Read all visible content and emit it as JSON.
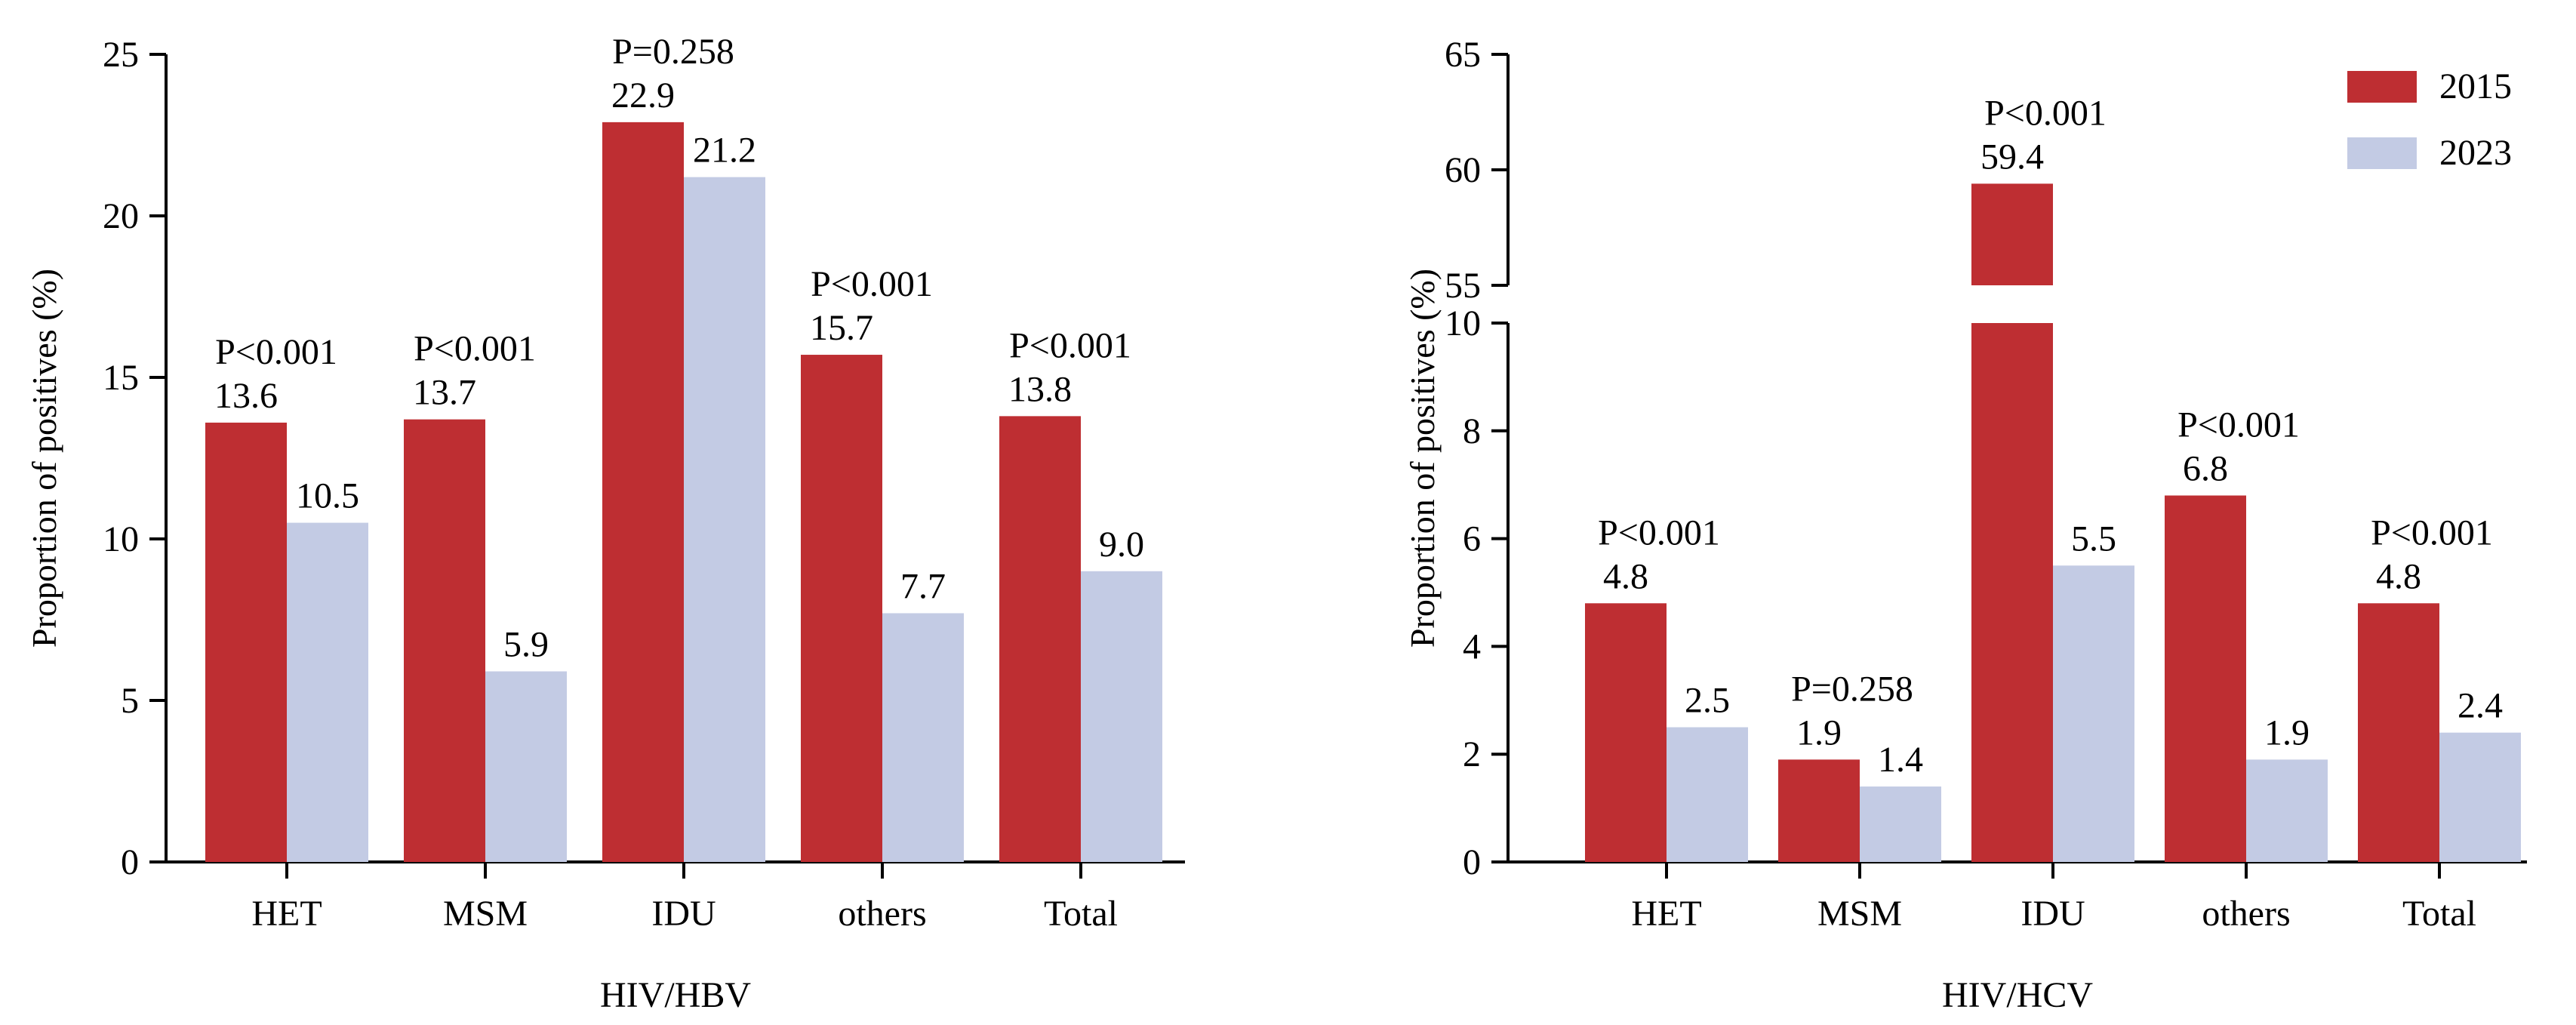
{
  "chart_data": [
    {
      "type": "bar",
      "title": "",
      "xlabel": "HIV/HBV",
      "ylabel": "Proportion of positives  (%)",
      "ylim": [
        0,
        25
      ],
      "yticks": [
        0,
        5,
        10,
        15,
        20,
        25
      ],
      "categories": [
        "HET",
        "MSM",
        "IDU",
        "others",
        "Total"
      ],
      "series": [
        {
          "name": "2015",
          "color": "#be2e32",
          "values": [
            13.6,
            13.7,
            22.9,
            15.7,
            13.8
          ],
          "labels": [
            "13.6",
            "13.7",
            "22.9",
            "15.7",
            "13.8"
          ]
        },
        {
          "name": "2023",
          "color": "#c3cbe4",
          "values": [
            10.5,
            5.9,
            21.2,
            7.7,
            9.0
          ],
          "labels": [
            "10.5",
            "5.9",
            "21.2",
            "7.7",
            "9.0"
          ]
        }
      ],
      "p_values": [
        "P<0.001",
        "P<0.001",
        "P=0.258",
        "P<0.001",
        "P<0.001"
      ]
    },
    {
      "type": "bar",
      "title": "",
      "xlabel": "HIV/HCV",
      "ylabel": "Proportion of positives  (%)",
      "ylim": [
        0,
        65
      ],
      "axis_break": {
        "lower": [
          0,
          10
        ],
        "upper": [
          55,
          65
        ]
      },
      "yticks_lower": [
        0,
        2,
        4,
        6,
        8,
        10
      ],
      "yticks_upper": [
        55,
        60,
        65
      ],
      "categories": [
        "HET",
        "MSM",
        "IDU",
        "others",
        "Total"
      ],
      "series": [
        {
          "name": "2015",
          "color": "#be2e32",
          "values": [
            4.8,
            1.9,
            59.4,
            6.8,
            4.8
          ],
          "labels": [
            "4.8",
            "1.9",
            "59.4",
            "6.8",
            "4.8"
          ]
        },
        {
          "name": "2023",
          "color": "#c3cbe4",
          "values": [
            2.5,
            1.4,
            5.5,
            1.9,
            2.4
          ],
          "labels": [
            "2.5",
            "1.4",
            "5.5",
            "1.9",
            "2.4"
          ]
        }
      ],
      "p_values": [
        "P<0.001",
        "P=0.258",
        "P<0.001",
        "P<0.001",
        "P<0.001"
      ],
      "legend": {
        "position": "top-right",
        "entries": [
          "2015",
          "2023"
        ]
      }
    }
  ]
}
